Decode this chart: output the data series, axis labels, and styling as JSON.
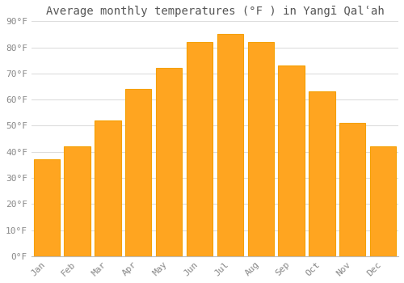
{
  "title": "Average monthly temperatures (°F ) in Yangī Qalʿah",
  "months": [
    "Jan",
    "Feb",
    "Mar",
    "Apr",
    "May",
    "Jun",
    "Jul",
    "Aug",
    "Sep",
    "Oct",
    "Nov",
    "Dec"
  ],
  "values": [
    37,
    42,
    52,
    64,
    72,
    82,
    85,
    82,
    73,
    63,
    51,
    42
  ],
  "bar_color": "#FFA520",
  "bar_edge_color": "#F5A000",
  "ylim": [
    0,
    90
  ],
  "yticks": [
    0,
    10,
    20,
    30,
    40,
    50,
    60,
    70,
    80,
    90
  ],
  "ytick_labels": [
    "0°F",
    "10°F",
    "20°F",
    "30°F",
    "40°F",
    "50°F",
    "60°F",
    "70°F",
    "80°F",
    "90°F"
  ],
  "background_color": "#ffffff",
  "grid_color": "#dddddd",
  "title_fontsize": 10,
  "tick_fontsize": 8,
  "bar_width": 0.85
}
